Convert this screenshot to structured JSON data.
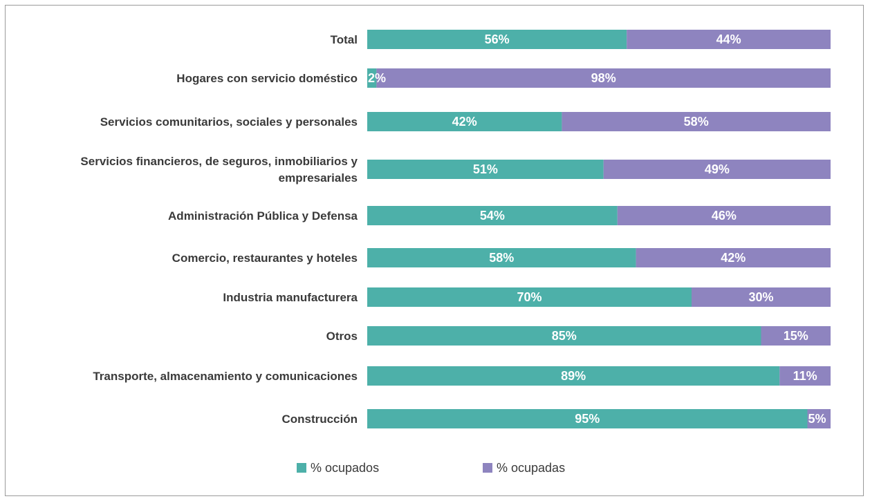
{
  "chart_data": {
    "type": "bar",
    "orientation": "horizontal",
    "stacked": "percent",
    "categories": [
      "Total",
      "Hogares con servicio doméstico",
      "Servicios comunitarios, sociales y personales",
      [
        "Servicios financieros, de seguros, inmobiliarios y",
        "empresariales"
      ],
      "Administración Pública y Defensa",
      "Comercio, restaurantes y hoteles",
      "Industria manufacturera",
      "Otros",
      "Transporte, almacenamiento y comunicaciones",
      "Construcción"
    ],
    "series": [
      {
        "name": "% ocupados",
        "color": "#4db0a9",
        "values": [
          56,
          2,
          42,
          51,
          54,
          58,
          70,
          85,
          89,
          95
        ]
      },
      {
        "name": "% ocupadas",
        "color": "#8e84bf",
        "values": [
          44,
          98,
          58,
          49,
          46,
          42,
          30,
          15,
          11,
          5
        ]
      }
    ],
    "value_suffix": "%",
    "xlim": [
      0,
      100
    ],
    "grid": false,
    "legend_position": "bottom"
  }
}
